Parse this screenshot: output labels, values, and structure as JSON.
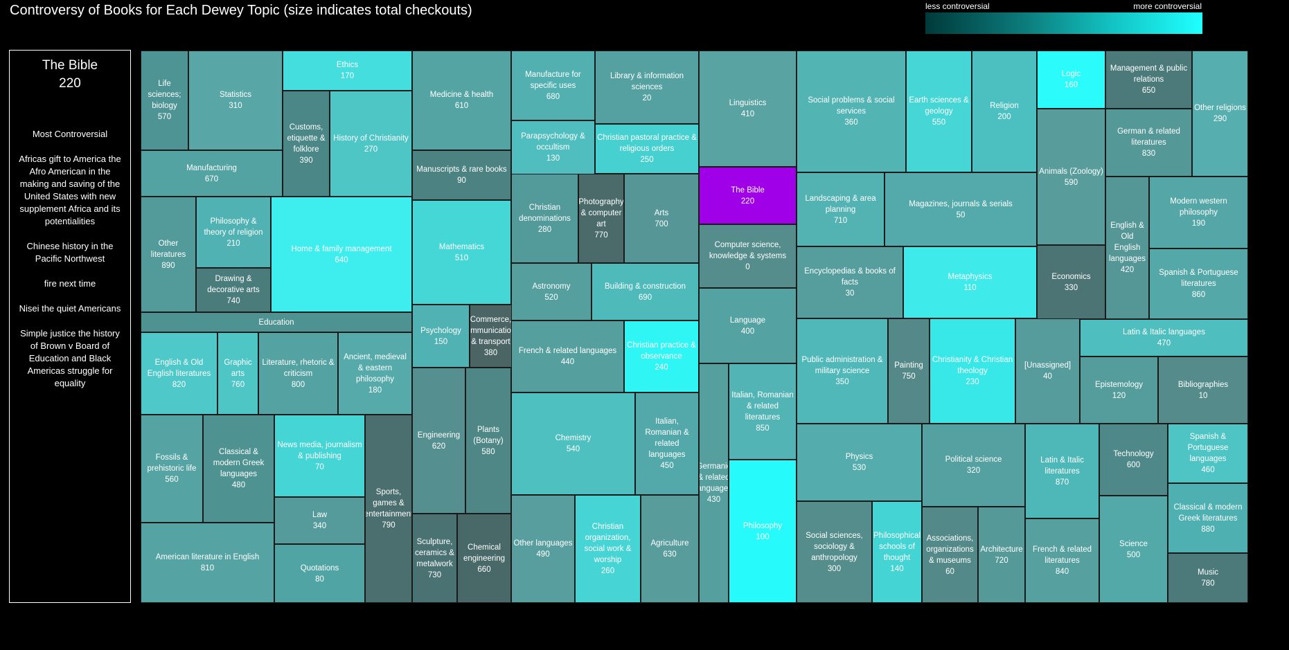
{
  "title": "Controversy of Books for Each Dewey Topic (size indicates total checkouts)",
  "legend": {
    "low_label": "less controversial",
    "high_label": "more controversial",
    "colors": [
      "#003a3a",
      "#0c7a7a",
      "#14c8c8",
      "#20ffff"
    ],
    "highlight_color": "#a000e8"
  },
  "selected": {
    "name": "The Bible",
    "value": "220",
    "heading": "Most Controversial",
    "items": [
      "Africas gift to America the Afro American in the making and saving of the United States with new supplement Africa and its potentialities",
      "Chinese history in the Pacific Northwest",
      "fire next time",
      "Nisei the quiet Americans",
      "Simple justice the history of Brown v Board of Education and Black Americas struggle for equality"
    ]
  },
  "chart_data": {
    "type": "treemap",
    "title": "Controversy of Books for Each Dewey Topic (size indicates total checkouts)",
    "color_scale": {
      "low": "less controversial",
      "high": "more controversial"
    },
    "tiles": [
      {
        "name": "Life sciences; biology",
        "code": "570",
        "color": "#4f9494"
      },
      {
        "name": "Statistics",
        "code": "310",
        "color": "#58a6a6"
      },
      {
        "name": "Ethics",
        "code": "170",
        "color": "#45dede"
      },
      {
        "name": "Customs, etiquette & folklore",
        "code": "390",
        "color": "#4b8787"
      },
      {
        "name": "History of Christianity",
        "code": "270",
        "color": "#4ec6c6"
      },
      {
        "name": "Manufacturing",
        "code": "670",
        "color": "#54a3a3"
      },
      {
        "name": "Other literatures",
        "code": "890",
        "color": "#539a9a"
      },
      {
        "name": "Philosophy & theory of religion",
        "code": "210",
        "color": "#50b2b2"
      },
      {
        "name": "Drawing & decorative arts",
        "code": "740",
        "color": "#4b7c7c"
      },
      {
        "name": "Home & family management",
        "code": "640",
        "color": "#3eeeee"
      },
      {
        "name": "Education",
        "code": "",
        "color": "#4f9292"
      },
      {
        "name": "English & Old English literatures",
        "code": "820",
        "color": "#4ec8c8"
      },
      {
        "name": "Graphic arts",
        "code": "760",
        "color": "#4fc6c6"
      },
      {
        "name": "Literature, rhetoric & criticism",
        "code": "800",
        "color": "#55a2a2"
      },
      {
        "name": "Ancient, medieval & eastern philosophy",
        "code": "180",
        "color": "#56aaaa"
      },
      {
        "name": "Fossils & prehistoric life",
        "code": "560",
        "color": "#55a3a3"
      },
      {
        "name": "Classical & modern Greek languages",
        "code": "480",
        "color": "#4f9292"
      },
      {
        "name": "News media, journalism & publishing",
        "code": "70",
        "color": "#45d5d5"
      },
      {
        "name": "Sports, games & entertainment",
        "code": "790",
        "color": "#4b6e6e"
      },
      {
        "name": "American literature in English",
        "code": "810",
        "color": "#55a3a3"
      },
      {
        "name": "Law",
        "code": "340",
        "color": "#569b9b"
      },
      {
        "name": "Quotations",
        "code": "80",
        "color": "#51a4a4"
      },
      {
        "name": "Medicine & health",
        "code": "610",
        "color": "#55a4a4"
      },
      {
        "name": "Manuscripts & rare books",
        "code": "90",
        "color": "#4d8282"
      },
      {
        "name": "Mathematics",
        "code": "510",
        "color": "#45d6d6"
      },
      {
        "name": "Psychology",
        "code": "150",
        "color": "#50b2b2"
      },
      {
        "name": "Commerce, communications & transport",
        "code": "380",
        "color": "#4b6565"
      },
      {
        "name": "Engineering",
        "code": "620",
        "color": "#558f8f"
      },
      {
        "name": "Plants (Botany)",
        "code": "580",
        "color": "#4f8787"
      },
      {
        "name": "Sculpture, ceramics & metalwork",
        "code": "730",
        "color": "#4b7272"
      },
      {
        "name": "Chemical engineering",
        "code": "660",
        "color": "#496969"
      },
      {
        "name": "Manufacture for specific uses",
        "code": "680",
        "color": "#53b0b0"
      },
      {
        "name": "Library & information sciences",
        "code": "20",
        "color": "#55a0a0"
      },
      {
        "name": "Parapsychology & occultism",
        "code": "130",
        "color": "#50bebe"
      },
      {
        "name": "Christian pastoral practice & religious orders",
        "code": "250",
        "color": "#46d0d0"
      },
      {
        "name": "Christian denominations",
        "code": "280",
        "color": "#539b9b"
      },
      {
        "name": "Photography & computer art",
        "code": "770",
        "color": "#4b6b6b"
      },
      {
        "name": "Arts",
        "code": "700",
        "color": "#569696"
      },
      {
        "name": "Astronomy",
        "code": "520",
        "color": "#559f9f"
      },
      {
        "name": "Building & construction",
        "code": "690",
        "color": "#4fbaba"
      },
      {
        "name": "French & related languages",
        "code": "440",
        "color": "#569f9f"
      },
      {
        "name": "Christian practice & observance",
        "code": "240",
        "color": "#30f5f5"
      },
      {
        "name": "Chemistry",
        "code": "540",
        "color": "#4ec0c0"
      },
      {
        "name": "Italian, Romanian & related languages",
        "code": "450",
        "color": "#53a9a9"
      },
      {
        "name": "Other languages",
        "code": "490",
        "color": "#589e9e"
      },
      {
        "name": "Christian organization, social work & worship",
        "code": "260",
        "color": "#46d4d4"
      },
      {
        "name": "Agriculture",
        "code": "630",
        "color": "#589c9c"
      },
      {
        "name": "Linguistics",
        "code": "410",
        "color": "#59a3a3"
      },
      {
        "name": "The Bible",
        "code": "220",
        "color": "#a000e8"
      },
      {
        "name": "Computer science, knowledge & systems",
        "code": "0",
        "color": "#558c8c"
      },
      {
        "name": "Language",
        "code": "400",
        "color": "#55a2a2"
      },
      {
        "name": "Germanic & related languages",
        "code": "430",
        "color": "#569f9f"
      },
      {
        "name": "Italian, Romanian & related literatures",
        "code": "850",
        "color": "#52b4b4"
      },
      {
        "name": "Philosophy",
        "code": "100",
        "color": "#27fafa"
      },
      {
        "name": "Social problems & social services",
        "code": "360",
        "color": "#53b4b4"
      },
      {
        "name": "Earth sciences & geology",
        "code": "550",
        "color": "#46d6d6"
      },
      {
        "name": "Religion",
        "code": "200",
        "color": "#4cc0c0"
      },
      {
        "name": "Logic",
        "code": "160",
        "color": "#2bfbfb"
      },
      {
        "name": "Management & public relations",
        "code": "650",
        "color": "#4c7a7a"
      },
      {
        "name": "Other religions",
        "code": "290",
        "color": "#56aeae"
      },
      {
        "name": "Landscaping & area planning",
        "code": "710",
        "color": "#53b2b2"
      },
      {
        "name": "Magazines, journals & serials",
        "code": "50",
        "color": "#54aaaa"
      },
      {
        "name": "Animals (Zoology)",
        "code": "590",
        "color": "#589c9c"
      },
      {
        "name": "German & related literatures",
        "code": "830",
        "color": "#559898"
      },
      {
        "name": "English & Old English languages",
        "code": "420",
        "color": "#559696"
      },
      {
        "name": "Modern western philosophy",
        "code": "190",
        "color": "#55a6a6"
      },
      {
        "name": "Encyclopedias & books of facts",
        "code": "30",
        "color": "#569e9e"
      },
      {
        "name": "Metaphysics",
        "code": "110",
        "color": "#3eeaea"
      },
      {
        "name": "Economics",
        "code": "330",
        "color": "#4c7474"
      },
      {
        "name": "Spanish & Portuguese literatures",
        "code": "860",
        "color": "#55a8a8"
      },
      {
        "name": "Public administration & military science",
        "code": "350",
        "color": "#50b8b8"
      },
      {
        "name": "Painting",
        "code": "750",
        "color": "#558888"
      },
      {
        "name": "Christianity & Christian theology",
        "code": "230",
        "color": "#38e8e8"
      },
      {
        "name": "[Unassigned]",
        "code": "40",
        "color": "#569c9c"
      },
      {
        "name": "Latin & Italic languages",
        "code": "470",
        "color": "#4ebebe"
      },
      {
        "name": "Epistemology",
        "code": "120",
        "color": "#559c9c"
      },
      {
        "name": "Bibliographies",
        "code": "10",
        "color": "#558b8b"
      },
      {
        "name": "Physics",
        "code": "530",
        "color": "#54acac"
      },
      {
        "name": "Political science",
        "code": "320",
        "color": "#55a0a0"
      },
      {
        "name": "Latin & Italic literatures",
        "code": "870",
        "color": "#4eb8b8"
      },
      {
        "name": "Technology",
        "code": "600",
        "color": "#4e8888"
      },
      {
        "name": "Spanish & Portuguese languages",
        "code": "460",
        "color": "#4ec4c4"
      },
      {
        "name": "Social sciences, sociology & anthropology",
        "code": "300",
        "color": "#558c8c"
      },
      {
        "name": "Philosophical schools of thought",
        "code": "140",
        "color": "#45d4d4"
      },
      {
        "name": "Associations, organizations & museums",
        "code": "60",
        "color": "#548989"
      },
      {
        "name": "Architecture",
        "code": "720",
        "color": "#569999"
      },
      {
        "name": "French & related literatures",
        "code": "840",
        "color": "#56a0a0"
      },
      {
        "name": "Science",
        "code": "500",
        "color": "#53a8a8"
      },
      {
        "name": "Classical & modern Greek literatures",
        "code": "880",
        "color": "#4eb0b0"
      },
      {
        "name": "Music",
        "code": "780",
        "color": "#4c7a7a"
      }
    ]
  }
}
